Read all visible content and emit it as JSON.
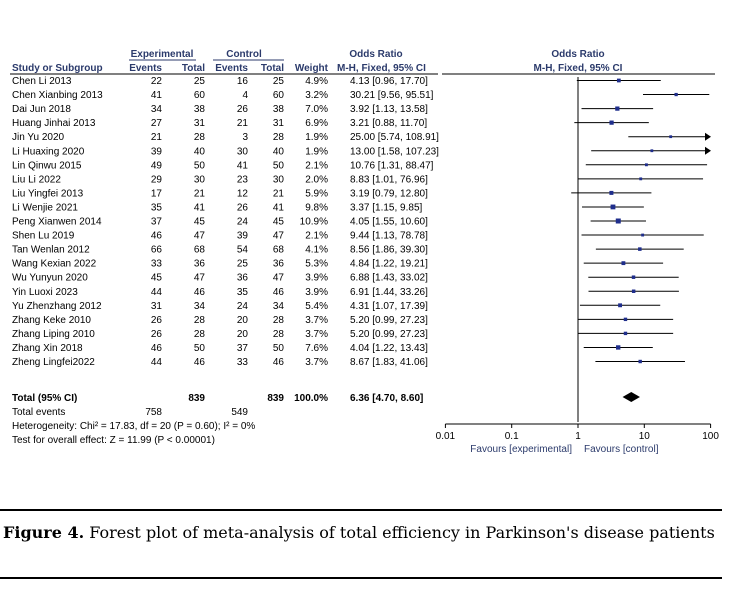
{
  "chart_data": {
    "type": "forest",
    "header": {
      "experimental": "Experimental",
      "control": "Control",
      "odds_ratio_table": "Odds Ratio",
      "odds_ratio_plot": "Odds Ratio",
      "study": "Study or Subgroup",
      "events": "Events",
      "total": "Total",
      "weight": "Weight",
      "method_table": "M-H, Fixed, 95% CI",
      "method_plot": "M-H, Fixed, 95% CI"
    },
    "studies": [
      {
        "study": "Chen Li 2013",
        "exp_events": "22",
        "exp_total": "25",
        "ctl_events": "16",
        "ctl_total": "25",
        "weight": "4.9%",
        "ci_text": "4.13 [0.96, 17.70]",
        "or": 4.13,
        "lo": 0.96,
        "hi": 17.7,
        "w": 4.9
      },
      {
        "study": "Chen Xianbing 2013",
        "exp_events": "41",
        "exp_total": "60",
        "ctl_events": "4",
        "ctl_total": "60",
        "weight": "3.2%",
        "ci_text": "30.21 [9.56, 95.51]",
        "or": 30.21,
        "lo": 9.56,
        "hi": 95.51,
        "w": 3.2
      },
      {
        "study": "Dai Jun 2018",
        "exp_events": "34",
        "exp_total": "38",
        "ctl_events": "26",
        "ctl_total": "38",
        "weight": "7.0%",
        "ci_text": "3.92 [1.13, 13.58]",
        "or": 3.92,
        "lo": 1.13,
        "hi": 13.58,
        "w": 7.0
      },
      {
        "study": "Huang Jinhai 2013",
        "exp_events": "27",
        "exp_total": "31",
        "ctl_events": "21",
        "ctl_total": "31",
        "weight": "6.9%",
        "ci_text": "3.21 [0.88, 11.70]",
        "or": 3.21,
        "lo": 0.88,
        "hi": 11.7,
        "w": 6.9
      },
      {
        "study": "Jin Yu 2020",
        "exp_events": "21",
        "exp_total": "28",
        "ctl_events": "3",
        "ctl_total": "28",
        "weight": "1.9%",
        "ci_text": "25.00 [5.74, 108.91]",
        "or": 25.0,
        "lo": 5.74,
        "hi": 108.91,
        "w": 1.9
      },
      {
        "study": "Li Huaxing 2020",
        "exp_events": "39",
        "exp_total": "40",
        "ctl_events": "30",
        "ctl_total": "40",
        "weight": "1.9%",
        "ci_text": "13.00 [1.58, 107.23]",
        "or": 13.0,
        "lo": 1.58,
        "hi": 107.23,
        "w": 1.9
      },
      {
        "study": "Lin Qinwu 2015",
        "exp_events": "49",
        "exp_total": "50",
        "ctl_events": "41",
        "ctl_total": "50",
        "weight": "2.1%",
        "ci_text": "10.76 [1.31, 88.47]",
        "or": 10.76,
        "lo": 1.31,
        "hi": 88.47,
        "w": 2.1
      },
      {
        "study": "Liu Li 2022",
        "exp_events": "29",
        "exp_total": "30",
        "ctl_events": "23",
        "ctl_total": "30",
        "weight": "2.0%",
        "ci_text": "8.83 [1.01, 76.96]",
        "or": 8.83,
        "lo": 1.01,
        "hi": 76.96,
        "w": 2.0
      },
      {
        "study": "Liu Yingfei 2013",
        "exp_events": "17",
        "exp_total": "21",
        "ctl_events": "12",
        "ctl_total": "21",
        "weight": "5.9%",
        "ci_text": "3.19 [0.79, 12.80]",
        "or": 3.19,
        "lo": 0.79,
        "hi": 12.8,
        "w": 5.9
      },
      {
        "study": "Li Wenjie 2021",
        "exp_events": "35",
        "exp_total": "41",
        "ctl_events": "26",
        "ctl_total": "41",
        "weight": "9.8%",
        "ci_text": "3.37 [1.15, 9.85]",
        "or": 3.37,
        "lo": 1.15,
        "hi": 9.85,
        "w": 9.8
      },
      {
        "study": "Peng Xianwen 2014",
        "exp_events": "37",
        "exp_total": "45",
        "ctl_events": "24",
        "ctl_total": "45",
        "weight": "10.9%",
        "ci_text": "4.05 [1.55, 10.60]",
        "or": 4.05,
        "lo": 1.55,
        "hi": 10.6,
        "w": 10.9
      },
      {
        "study": "Shen Lu 2019",
        "exp_events": "46",
        "exp_total": "47",
        "ctl_events": "39",
        "ctl_total": "47",
        "weight": "2.1%",
        "ci_text": "9.44 [1.13, 78.78]",
        "or": 9.44,
        "lo": 1.13,
        "hi": 78.78,
        "w": 2.1
      },
      {
        "study": "Tan Wenlan 2012",
        "exp_events": "66",
        "exp_total": "68",
        "ctl_events": "54",
        "ctl_total": "68",
        "weight": "4.1%",
        "ci_text": "8.56 [1.86, 39.30]",
        "or": 8.56,
        "lo": 1.86,
        "hi": 39.3,
        "w": 4.1
      },
      {
        "study": "Wang Kexian 2022",
        "exp_events": "33",
        "exp_total": "36",
        "ctl_events": "25",
        "ctl_total": "36",
        "weight": "5.3%",
        "ci_text": "4.84 [1.22, 19.21]",
        "or": 4.84,
        "lo": 1.22,
        "hi": 19.21,
        "w": 5.3
      },
      {
        "study": "Wu Yunyun 2020",
        "exp_events": "45",
        "exp_total": "47",
        "ctl_events": "36",
        "ctl_total": "47",
        "weight": "3.9%",
        "ci_text": "6.88 [1.43, 33.02]",
        "or": 6.88,
        "lo": 1.43,
        "hi": 33.02,
        "w": 3.9
      },
      {
        "study": "Yin Luoxi 2023",
        "exp_events": "44",
        "exp_total": "46",
        "ctl_events": "35",
        "ctl_total": "46",
        "weight": "3.9%",
        "ci_text": "6.91 [1.44, 33.26]",
        "or": 6.91,
        "lo": 1.44,
        "hi": 33.26,
        "w": 3.9
      },
      {
        "study": "Yu Zhenzhang 2012",
        "exp_events": "31",
        "exp_total": "34",
        "ctl_events": "24",
        "ctl_total": "34",
        "weight": "5.4%",
        "ci_text": "4.31 [1.07, 17.39]",
        "or": 4.31,
        "lo": 1.07,
        "hi": 17.39,
        "w": 5.4
      },
      {
        "study": "Zhang Keke 2010",
        "exp_events": "26",
        "exp_total": "28",
        "ctl_events": "20",
        "ctl_total": "28",
        "weight": "3.7%",
        "ci_text": "5.20 [0.99, 27.23]",
        "or": 5.2,
        "lo": 0.99,
        "hi": 27.23,
        "w": 3.7
      },
      {
        "study": "Zhang Liping 2010",
        "exp_events": "26",
        "exp_total": "28",
        "ctl_events": "20",
        "ctl_total": "28",
        "weight": "3.7%",
        "ci_text": "5.20 [0.99, 27.23]",
        "or": 5.2,
        "lo": 0.99,
        "hi": 27.23,
        "w": 3.7
      },
      {
        "study": "Zhang Xin 2018",
        "exp_events": "46",
        "exp_total": "50",
        "ctl_events": "37",
        "ctl_total": "50",
        "weight": "7.6%",
        "ci_text": "4.04 [1.22, 13.43]",
        "or": 4.04,
        "lo": 1.22,
        "hi": 13.43,
        "w": 7.6
      },
      {
        "study": "Zheng Lingfei2022",
        "exp_events": "44",
        "exp_total": "46",
        "ctl_events": "33",
        "ctl_total": "46",
        "weight": "3.7%",
        "ci_text": "8.67 [1.83, 41.06]",
        "or": 8.67,
        "lo": 1.83,
        "hi": 41.06,
        "w": 3.7
      }
    ],
    "total": {
      "label": "Total (95% CI)",
      "exp_total": "839",
      "ctl_total": "839",
      "weight": "100.0%",
      "ci_text": "6.36 [4.70, 8.60]",
      "or": 6.36,
      "lo": 4.7,
      "hi": 8.6
    },
    "total_events": {
      "label": "Total events",
      "exp": "758",
      "ctl": "549"
    },
    "heterogeneity": "Heterogeneity: Chi² = 17.83, df = 20 (P = 0.60); I² = 0%",
    "overall_effect": "Test for overall effect: Z = 11.99 (P < 0.00001)",
    "x_axis": {
      "scale": "log",
      "range": [
        0.01,
        100
      ],
      "ticks": [
        0.01,
        0.1,
        1,
        10,
        100
      ],
      "tick_labels": [
        "0.01",
        "0.1",
        "1",
        "10",
        "100"
      ],
      "left_label": "Favours [experimental]",
      "right_label": "Favours [control]"
    },
    "colors": {
      "marker": "#1f2e8c",
      "line": "#000000",
      "header": "#2b3a6b"
    }
  },
  "caption": {
    "label": "Figure 4.",
    "text": "Forest plot of meta-analysis of total efficiency in Parkinson's disease patients"
  }
}
